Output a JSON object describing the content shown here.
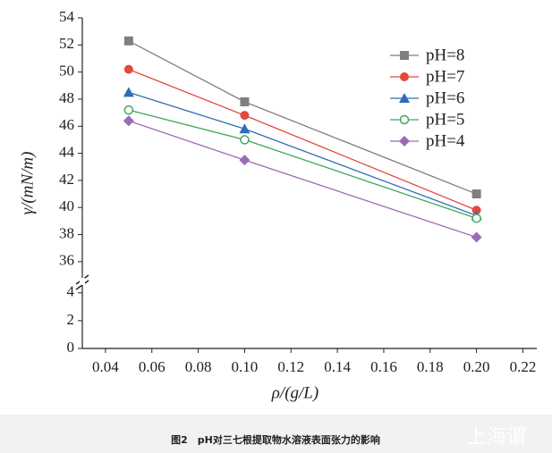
{
  "chart_data": {
    "type": "line",
    "x_label": "ρ/(g/L)",
    "y_label": "γ/(mN/m)",
    "x": [
      0.05,
      0.1,
      0.2
    ],
    "series": [
      {
        "name": "pH=8",
        "color": "#7f7f7f",
        "marker": "square",
        "values": [
          52.3,
          47.8,
          41.0
        ]
      },
      {
        "name": "pH=7",
        "color": "#e5483c",
        "marker": "circle",
        "values": [
          50.2,
          46.8,
          39.8
        ]
      },
      {
        "name": "pH=6",
        "color": "#2f6db5",
        "marker": "triangle",
        "values": [
          48.5,
          45.8,
          39.4
        ]
      },
      {
        "name": "pH=5",
        "color": "#3ea75c",
        "marker": "open-circle",
        "values": [
          47.2,
          45.0,
          39.2
        ]
      },
      {
        "name": "pH=4",
        "color": "#9a6cb8",
        "marker": "diamond",
        "values": [
          46.4,
          43.5,
          37.8
        ]
      }
    ],
    "xlim": [
      0.03,
      0.226
    ],
    "xticks": [
      0.04,
      0.06,
      0.08,
      {
        "value": 0.1,
        "label": "0.10"
      },
      0.12,
      0.14,
      0.16,
      0.18,
      {
        "value": 0.2,
        "label": "0.20"
      },
      0.22
    ],
    "ylim": [
      0,
      54
    ],
    "ybreak": [
      4.5,
      35
    ],
    "yticks": [
      0,
      2,
      4,
      36,
      38,
      40,
      42,
      44,
      46,
      48,
      50,
      52,
      54
    ],
    "legend": "upper right"
  },
  "caption": "图2　pH对三七根提取物水溶液表面张力的影响",
  "watermark": "上海谓"
}
